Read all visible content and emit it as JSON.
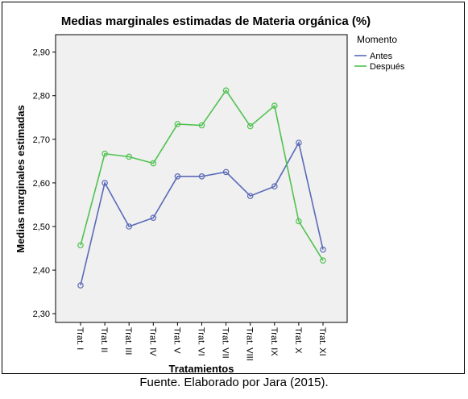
{
  "chart_data": {
    "type": "line",
    "title": "Medias marginales estimadas de Materia orgánica (%)",
    "xlabel": "Tratamientos",
    "ylabel": "Medias marginales estimadas",
    "categories": [
      "Trat. I",
      "Trat. II",
      "Trat. III",
      "Trat. IV",
      "Trat. V",
      "Trat. VI",
      "Trat. VII",
      "Trat. VIII",
      "Trat. IX",
      "Trat. X",
      "Trat. XI"
    ],
    "ylim": [
      2.28,
      2.94
    ],
    "yticks": [
      "2,30",
      "2,40",
      "2,50",
      "2,60",
      "2,70",
      "2,80",
      "2,90"
    ],
    "grid": false,
    "legend": {
      "title": "Momento",
      "placement": "top-right-outside"
    },
    "series": [
      {
        "name": "Antes",
        "color": "#5a6ab8",
        "values": [
          2.365,
          2.6,
          2.5,
          2.52,
          2.615,
          2.615,
          2.625,
          2.57,
          2.592,
          2.692,
          2.447
        ]
      },
      {
        "name": "Después",
        "color": "#4fc24f",
        "values": [
          2.457,
          2.667,
          2.66,
          2.645,
          2.735,
          2.732,
          2.812,
          2.73,
          2.777,
          2.512,
          2.422
        ]
      }
    ]
  },
  "caption": "Fuente. Elaborado por Jara (2015)."
}
